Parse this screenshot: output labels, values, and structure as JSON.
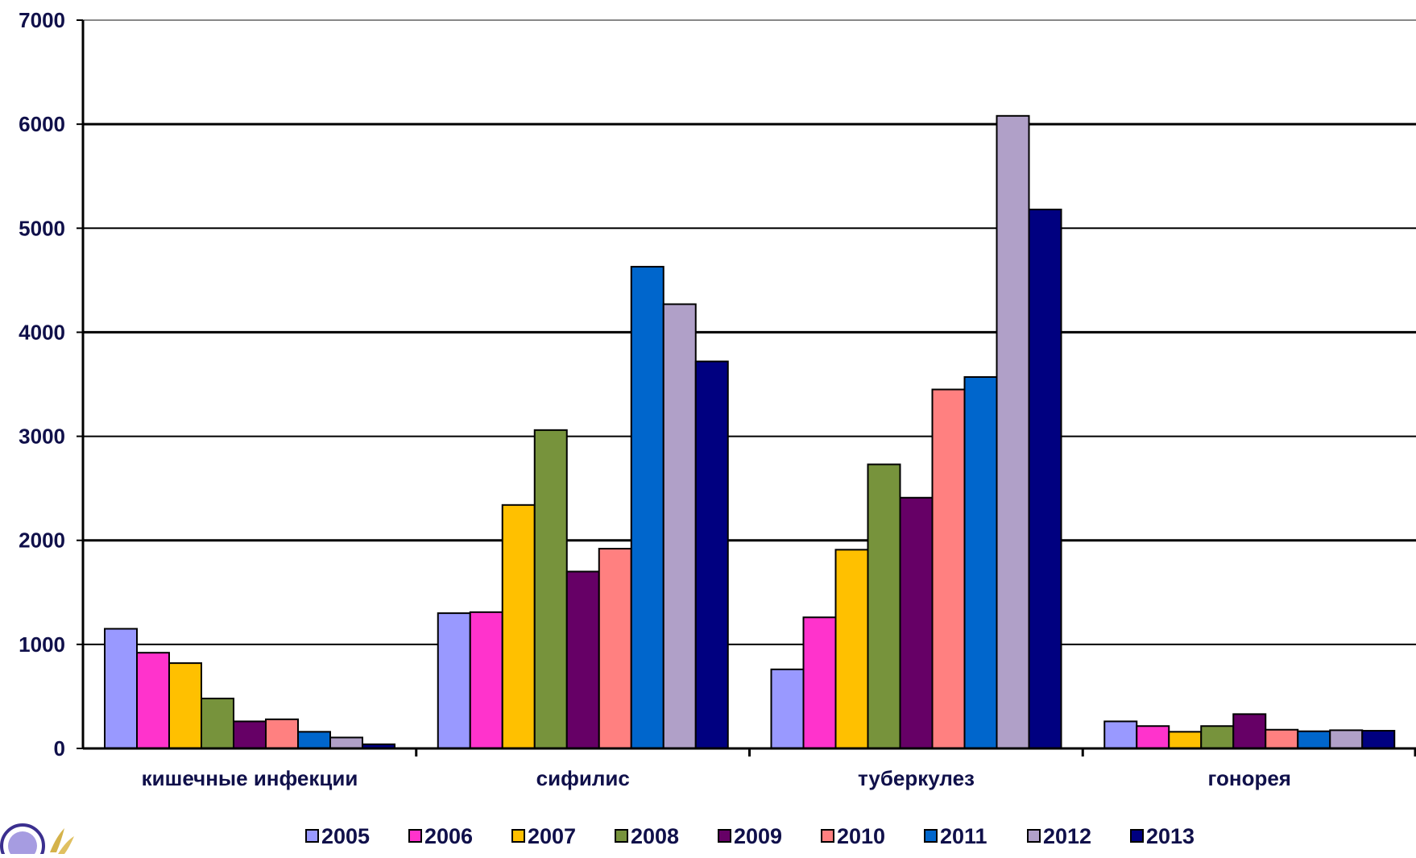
{
  "chart_data": {
    "type": "bar",
    "title": "",
    "xlabel": "",
    "ylabel": "",
    "ylim": [
      0,
      7000
    ],
    "yticks": [
      0,
      1000,
      2000,
      3000,
      4000,
      5000,
      6000,
      7000
    ],
    "grid": true,
    "legend_position": "bottom",
    "categories": [
      "кишечные инфекции",
      "сифилис",
      "туберкулез",
      "гонорея"
    ],
    "series": [
      {
        "name": "2005",
        "color": "#9999ff",
        "values": [
          1150,
          1300,
          760,
          260
        ]
      },
      {
        "name": "2006",
        "color": "#ff33cc",
        "values": [
          920,
          1310,
          1260,
          215
        ]
      },
      {
        "name": "2007",
        "color": "#ffc000",
        "values": [
          820,
          2340,
          1910,
          160
        ]
      },
      {
        "name": "2008",
        "color": "#77933c",
        "values": [
          480,
          3060,
          2730,
          215
        ]
      },
      {
        "name": "2009",
        "color": "#660066",
        "values": [
          260,
          1700,
          2410,
          330
        ]
      },
      {
        "name": "2010",
        "color": "#ff8080",
        "values": [
          280,
          1920,
          3450,
          180
        ]
      },
      {
        "name": "2011",
        "color": "#0066cc",
        "values": [
          160,
          4630,
          3570,
          165
        ]
      },
      {
        "name": "2012",
        "color": "#b0a0c8",
        "values": [
          105,
          4270,
          6080,
          175
        ]
      },
      {
        "name": "2013",
        "color": "#000080",
        "values": [
          40,
          3720,
          5180,
          170
        ]
      }
    ]
  },
  "logo": {
    "icon": "emblem-icon"
  }
}
